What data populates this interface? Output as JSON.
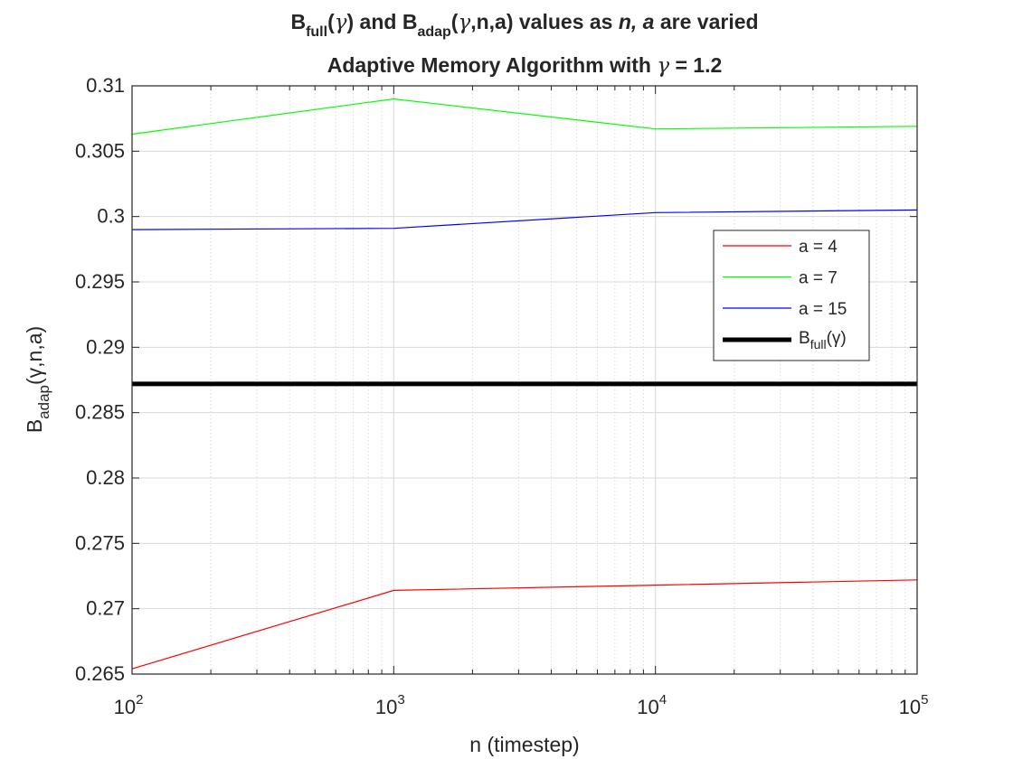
{
  "chart_data": {
    "type": "line",
    "title_line1_parts": {
      "b1": "B",
      "b1_sub": "full",
      "gamma_open": "(",
      "gamma1": "γ",
      "mid": ") and B",
      "b2_sub": "adap",
      "args": "(",
      "gamma2": "γ",
      "args_rest": ",n,a) values as  ",
      "na_italic": "n, a",
      "tail": " are varied"
    },
    "title_line2_parts": {
      "pre": "Adaptive Memory Algorithm with ",
      "gamma": "γ",
      "post": " = 1.2"
    },
    "xlabel": "n (timestep)",
    "ylabel_parts": {
      "main": "B",
      "sub": "adap",
      "rest": "(γ,n,a)"
    },
    "xscale": "log",
    "xlim": [
      100,
      100000
    ],
    "ylim": [
      0.265,
      0.31
    ],
    "x_ticks": [
      {
        "value": 100,
        "base": "10",
        "exp": "2"
      },
      {
        "value": 1000,
        "base": "10",
        "exp": "3"
      },
      {
        "value": 10000,
        "base": "10",
        "exp": "4"
      },
      {
        "value": 100000,
        "base": "10",
        "exp": "5"
      }
    ],
    "y_ticks": [
      {
        "value": 0.265,
        "label": "0.265"
      },
      {
        "value": 0.27,
        "label": "0.27"
      },
      {
        "value": 0.275,
        "label": "0.275"
      },
      {
        "value": 0.28,
        "label": "0.28"
      },
      {
        "value": 0.285,
        "label": "0.285"
      },
      {
        "value": 0.29,
        "label": "0.29"
      },
      {
        "value": 0.295,
        "label": "0.295"
      },
      {
        "value": 0.3,
        "label": "0.3"
      },
      {
        "value": 0.305,
        "label": "0.305"
      },
      {
        "value": 0.31,
        "label": "0.31"
      }
    ],
    "grid": true,
    "minor_grid_x": true,
    "legend_placement": "right-middle",
    "x": [
      100,
      1000,
      10000,
      100000
    ],
    "series": [
      {
        "name": "a = 4",
        "color": "#ff0000",
        "values": [
          0.2654,
          0.2714,
          0.2718,
          0.2722
        ]
      },
      {
        "name": "a = 7",
        "color": "#00ff00",
        "values": [
          0.3063,
          0.309,
          0.3067,
          0.3069
        ]
      },
      {
        "name": "a = 15",
        "color": "#0000ff",
        "values": [
          0.299,
          0.2991,
          0.3003,
          0.3005
        ]
      }
    ],
    "reference_line": {
      "legend_main": "B",
      "legend_sub": "full",
      "legend_rest": "(γ)",
      "color": "#000000",
      "value": 0.2872
    }
  }
}
